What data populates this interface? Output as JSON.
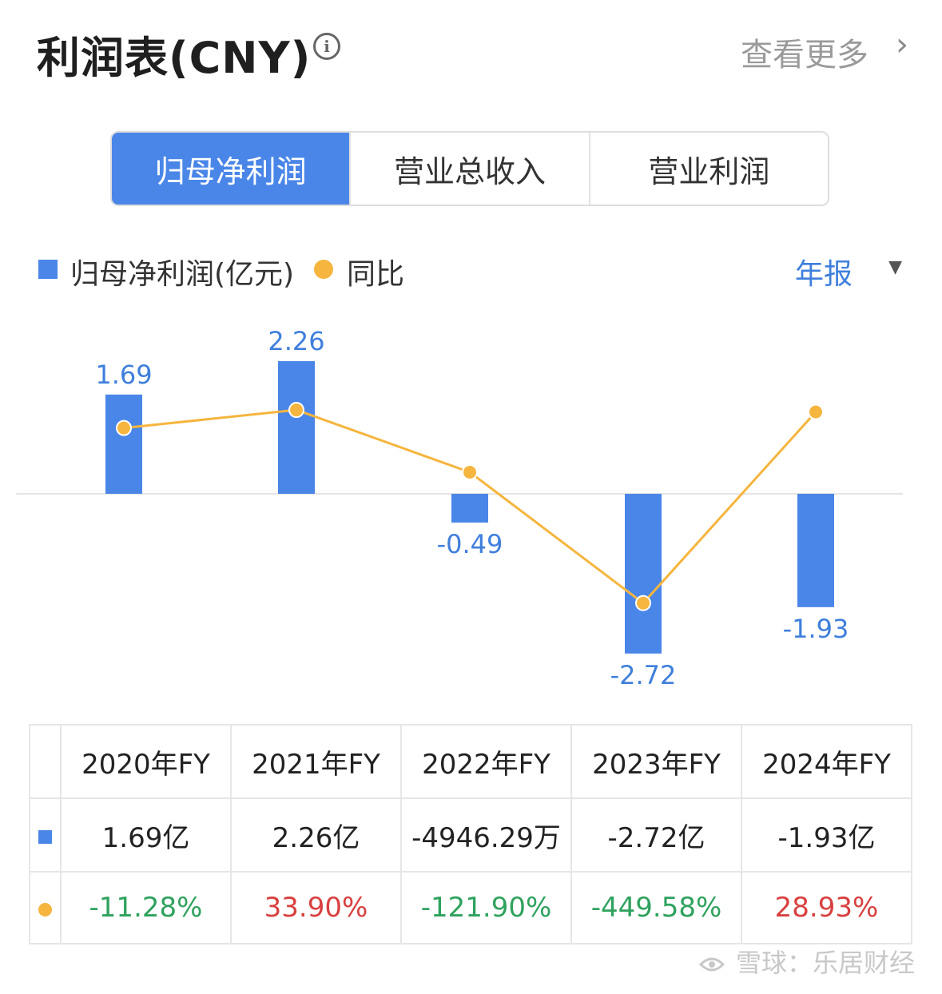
{
  "header": {
    "title": "利润表(CNY)",
    "info_icon": "info-icon",
    "more_label": "查看更多",
    "chevron_icon": "chevron-right-icon"
  },
  "tabs": [
    {
      "label": "归母净利润",
      "active": true
    },
    {
      "label": "营业总收入",
      "active": false
    },
    {
      "label": "营业利润",
      "active": false
    }
  ],
  "legend": {
    "bar_label": "归母净利润(亿元)",
    "line_label": "同比",
    "period": "年报",
    "caret_icon": "caret-down-icon"
  },
  "colors": {
    "bar": "#4a86e8",
    "line": "#f5b53e",
    "positive": "#d94040",
    "negative": "#2fa25e",
    "active_tab": "#4a86e8"
  },
  "chart_data": {
    "type": "bar",
    "categories": [
      "2020年FY",
      "2021年FY",
      "2022年FY",
      "2023年FY",
      "2024年FY"
    ],
    "series": [
      {
        "name": "归母净利润(亿元)",
        "type": "bar",
        "values": [
          1.69,
          2.26,
          -0.49,
          -2.72,
          -1.93
        ],
        "labels": [
          "1.69",
          "2.26",
          "-0.49",
          "-2.72",
          "-1.93"
        ]
      },
      {
        "name": "同比",
        "type": "line",
        "values": [
          -11.28,
          33.9,
          -121.9,
          -449.58,
          28.93
        ]
      }
    ]
  },
  "table": {
    "headers": [
      "2020年FY",
      "2021年FY",
      "2022年FY",
      "2023年FY",
      "2024年FY"
    ],
    "values": [
      "1.69亿",
      "2.26亿",
      "-4946.29万",
      "-2.72亿",
      "-1.93亿"
    ],
    "yoy": [
      "-11.28%",
      "33.90%",
      "-121.90%",
      "-449.58%",
      "28.93%"
    ]
  },
  "watermark": "雪球：乐居财经"
}
